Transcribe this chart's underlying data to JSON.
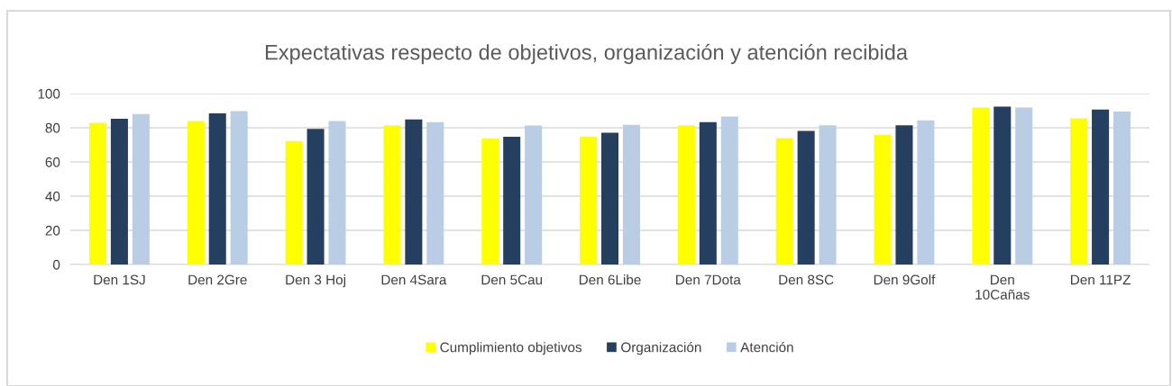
{
  "chart_data": {
    "type": "bar",
    "title": "Expectativas respecto de objetivos, organización y atención recibida",
    "categories": [
      "Den 1SJ",
      "Den 2Gre",
      "Den 3 Hoj",
      "Den 4Sara",
      "Den 5Cau",
      "Den 6Libe",
      "Den 7Dota",
      "Den 8SC",
      "Den 9Golf",
      "Den\n10Cañas",
      "Den 11PZ"
    ],
    "series": [
      {
        "name": "Cumplimiento objetivos",
        "color": "#ffff00",
        "values": [
          82.9,
          84.0,
          72.2,
          81.5,
          73.7,
          74.8,
          81.5,
          73.9,
          75.9,
          91.8,
          85.5
        ]
      },
      {
        "name": "Organización",
        "color": "#243f60",
        "values": [
          85.3,
          88.4,
          79.3,
          84.9,
          74.8,
          77.1,
          83.3,
          78.2,
          81.5,
          92.4,
          90.6
        ]
      },
      {
        "name": "Atención",
        "color": "#b9cde5",
        "values": [
          88.0,
          89.8,
          84.0,
          83.3,
          81.3,
          81.7,
          86.6,
          81.5,
          84.4,
          91.8,
          89.5
        ]
      }
    ],
    "ylim": [
      0,
      100
    ],
    "yticks": [
      0,
      20,
      40,
      60,
      80,
      100
    ],
    "grid": "y",
    "legend": "bottom"
  }
}
